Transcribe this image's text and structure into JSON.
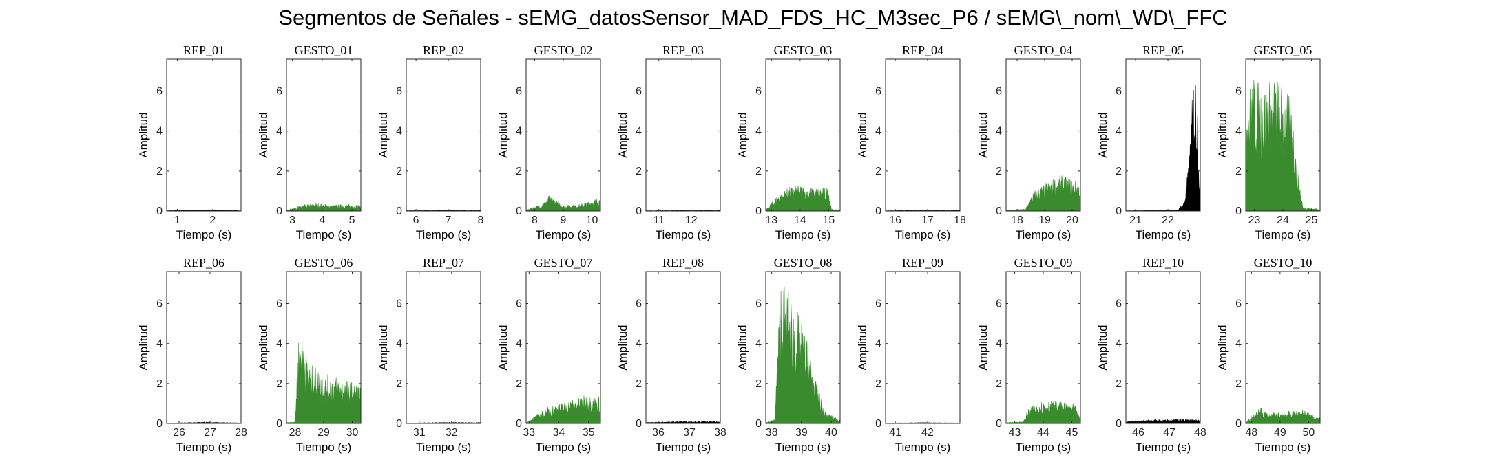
{
  "figure_title": "Segmentos de Señales - sEMG_datosSensor_MAD_FDS_HC_M3sec_P6 / sEMG\\_nom\\_WD\\_FFC",
  "colors": {
    "rep": "#000000",
    "gesto": "#3a8a2e"
  },
  "chart_data": [
    {
      "type": "area",
      "title": "REP_01",
      "kind": "rep",
      "xlabel": "Tiempo (s)",
      "ylabel": "Amplitud",
      "xlim": [
        0.7,
        2.8
      ],
      "ylim": [
        0,
        7.6
      ],
      "xticks": [
        1,
        2
      ],
      "yticks": [
        0,
        2,
        4,
        6
      ],
      "envelope": [
        [
          0.7,
          0.02
        ],
        [
          1.5,
          0.05
        ],
        [
          2.8,
          0.03
        ]
      ]
    },
    {
      "type": "area",
      "title": "GESTO_01",
      "kind": "gesto",
      "xlabel": "Tiempo (s)",
      "ylabel": "Amplitud",
      "xlim": [
        2.8,
        5.3
      ],
      "ylim": [
        0,
        7.6
      ],
      "xticks": [
        3,
        4,
        5
      ],
      "yticks": [
        0,
        2,
        4,
        6
      ],
      "envelope": [
        [
          2.8,
          0.04
        ],
        [
          3.3,
          0.3
        ],
        [
          3.8,
          0.4
        ],
        [
          4.3,
          0.3
        ],
        [
          4.8,
          0.35
        ],
        [
          5.3,
          0.3
        ]
      ]
    },
    {
      "type": "area",
      "title": "REP_02",
      "kind": "rep",
      "xlabel": "Tiempo (s)",
      "ylabel": "Amplitud",
      "xlim": [
        5.7,
        8.0
      ],
      "ylim": [
        0,
        7.6
      ],
      "xticks": [
        6,
        7,
        8
      ],
      "yticks": [
        0,
        2,
        4,
        6
      ],
      "envelope": [
        [
          5.7,
          0.02
        ],
        [
          6.8,
          0.04
        ],
        [
          8.0,
          0.03
        ]
      ]
    },
    {
      "type": "area",
      "title": "GESTO_02",
      "kind": "gesto",
      "xlabel": "Tiempo (s)",
      "ylabel": "Amplitud",
      "xlim": [
        7.7,
        10.3
      ],
      "ylim": [
        0,
        7.6
      ],
      "xticks": [
        8,
        9,
        10
      ],
      "yticks": [
        0,
        2,
        4,
        6
      ],
      "envelope": [
        [
          7.7,
          0.05
        ],
        [
          8.3,
          0.4
        ],
        [
          8.5,
          0.8
        ],
        [
          9.0,
          0.3
        ],
        [
          9.6,
          0.35
        ],
        [
          10.3,
          0.7
        ]
      ]
    },
    {
      "type": "area",
      "title": "REP_03",
      "kind": "rep",
      "xlabel": "Tiempo (s)",
      "ylabel": "Amplitud",
      "xlim": [
        10.6,
        12.9
      ],
      "ylim": [
        0,
        7.6
      ],
      "xticks": [
        11,
        12
      ],
      "yticks": [
        0,
        2,
        4,
        6
      ],
      "envelope": [
        [
          10.6,
          0.02
        ],
        [
          11.8,
          0.03
        ],
        [
          12.9,
          0.03
        ]
      ]
    },
    {
      "type": "area",
      "title": "GESTO_03",
      "kind": "gesto",
      "xlabel": "Tiempo (s)",
      "ylabel": "Amplitud",
      "xlim": [
        12.8,
        15.4
      ],
      "ylim": [
        0,
        7.6
      ],
      "xticks": [
        13,
        14,
        15
      ],
      "yticks": [
        0,
        2,
        4,
        6
      ],
      "envelope": [
        [
          12.8,
          0.05
        ],
        [
          13.2,
          0.8
        ],
        [
          13.6,
          1.2
        ],
        [
          14.0,
          1.3
        ],
        [
          14.5,
          1.2
        ],
        [
          15.0,
          1.2
        ],
        [
          15.1,
          0.1
        ],
        [
          15.4,
          0.05
        ]
      ]
    },
    {
      "type": "area",
      "title": "REP_04",
      "kind": "rep",
      "xlabel": "Tiempo (s)",
      "ylabel": "Amplitud",
      "xlim": [
        15.7,
        18.0
      ],
      "ylim": [
        0,
        7.6
      ],
      "xticks": [
        16,
        17,
        18
      ],
      "yticks": [
        0,
        2,
        4,
        6
      ],
      "envelope": [
        [
          15.7,
          0.02
        ],
        [
          16.9,
          0.04
        ],
        [
          18.0,
          0.03
        ]
      ]
    },
    {
      "type": "area",
      "title": "GESTO_04",
      "kind": "gesto",
      "xlabel": "Tiempo (s)",
      "ylabel": "Amplitud",
      "xlim": [
        17.6,
        20.3
      ],
      "ylim": [
        0,
        7.6
      ],
      "xticks": [
        18,
        19,
        20
      ],
      "yticks": [
        0,
        2,
        4,
        6
      ],
      "envelope": [
        [
          17.6,
          0.04
        ],
        [
          18.3,
          0.1
        ],
        [
          18.6,
          1.0
        ],
        [
          19.2,
          1.6
        ],
        [
          19.6,
          1.8
        ],
        [
          20.2,
          1.5
        ],
        [
          20.3,
          1.3
        ]
      ]
    },
    {
      "type": "area",
      "title": "REP_05",
      "kind": "rep",
      "xlabel": "Tiempo (s)",
      "ylabel": "Amplitud",
      "xlim": [
        20.7,
        23.0
      ],
      "ylim": [
        0,
        7.6
      ],
      "xticks": [
        21,
        22
      ],
      "yticks": [
        0,
        2,
        4,
        6
      ],
      "envelope": [
        [
          20.7,
          0.02
        ],
        [
          22.3,
          0.05
        ],
        [
          22.5,
          0.5
        ],
        [
          22.65,
          2.5
        ],
        [
          22.8,
          7.2
        ],
        [
          22.9,
          6.8
        ],
        [
          23.0,
          0.1
        ]
      ]
    },
    {
      "type": "area",
      "title": "GESTO_05",
      "kind": "gesto",
      "xlabel": "Tiempo (s)",
      "ylabel": "Amplitud",
      "xlim": [
        22.7,
        25.3
      ],
      "ylim": [
        0,
        7.6
      ],
      "xticks": [
        23,
        24,
        25
      ],
      "yticks": [
        0,
        2,
        4,
        6
      ],
      "envelope": [
        [
          22.7,
          6.0
        ],
        [
          23.0,
          6.8
        ],
        [
          23.3,
          6.3
        ],
        [
          23.7,
          6.8
        ],
        [
          24.0,
          6.5
        ],
        [
          24.3,
          5.5
        ],
        [
          24.5,
          2.5
        ],
        [
          24.7,
          0.2
        ],
        [
          25.3,
          0.1
        ]
      ]
    },
    {
      "type": "area",
      "title": "REP_06",
      "kind": "rep",
      "xlabel": "Tiempo (s)",
      "ylabel": "Amplitud",
      "xlim": [
        25.6,
        28.0
      ],
      "ylim": [
        0,
        7.6
      ],
      "xticks": [
        26,
        27,
        28
      ],
      "yticks": [
        0,
        2,
        4,
        6
      ],
      "envelope": [
        [
          25.6,
          0.02
        ],
        [
          26.8,
          0.07
        ],
        [
          28.0,
          0.03
        ]
      ]
    },
    {
      "type": "area",
      "title": "GESTO_06",
      "kind": "gesto",
      "xlabel": "Tiempo (s)",
      "ylabel": "Amplitud",
      "xlim": [
        27.7,
        30.3
      ],
      "ylim": [
        0,
        7.6
      ],
      "xticks": [
        28,
        29,
        30
      ],
      "yticks": [
        0,
        2,
        4,
        6
      ],
      "envelope": [
        [
          27.7,
          0.05
        ],
        [
          28.0,
          0.1
        ],
        [
          28.1,
          4.0
        ],
        [
          28.2,
          5.2
        ],
        [
          28.5,
          3.0
        ],
        [
          29.0,
          2.6
        ],
        [
          29.6,
          2.3
        ],
        [
          30.2,
          2.0
        ],
        [
          30.3,
          1.8
        ]
      ]
    },
    {
      "type": "area",
      "title": "REP_07",
      "kind": "rep",
      "xlabel": "Tiempo (s)",
      "ylabel": "Amplitud",
      "xlim": [
        30.6,
        32.9
      ],
      "ylim": [
        0,
        7.6
      ],
      "xticks": [
        31,
        32
      ],
      "yticks": [
        0,
        2,
        4,
        6
      ],
      "envelope": [
        [
          30.6,
          0.02
        ],
        [
          31.8,
          0.06
        ],
        [
          32.9,
          0.05
        ]
      ]
    },
    {
      "type": "area",
      "title": "GESTO_07",
      "kind": "gesto",
      "xlabel": "Tiempo (s)",
      "ylabel": "Amplitud",
      "xlim": [
        32.9,
        35.4
      ],
      "ylim": [
        0,
        7.6
      ],
      "xticks": [
        33,
        34,
        35
      ],
      "yticks": [
        0,
        2,
        4,
        6
      ],
      "envelope": [
        [
          32.9,
          0.05
        ],
        [
          33.2,
          0.4
        ],
        [
          33.7,
          0.9
        ],
        [
          34.2,
          1.1
        ],
        [
          34.8,
          1.4
        ],
        [
          35.4,
          1.4
        ]
      ]
    },
    {
      "type": "area",
      "title": "REP_08",
      "kind": "rep",
      "xlabel": "Tiempo (s)",
      "ylabel": "Amplitud",
      "xlim": [
        35.6,
        38.0
      ],
      "ylim": [
        0,
        7.6
      ],
      "xticks": [
        36,
        37,
        38
      ],
      "yticks": [
        0,
        2,
        4,
        6
      ],
      "envelope": [
        [
          35.6,
          0.05
        ],
        [
          36.8,
          0.12
        ],
        [
          38.0,
          0.1
        ]
      ]
    },
    {
      "type": "area",
      "title": "GESTO_08",
      "kind": "gesto",
      "xlabel": "Tiempo (s)",
      "ylabel": "Amplitud",
      "xlim": [
        37.8,
        40.3
      ],
      "ylim": [
        0,
        7.6
      ],
      "xticks": [
        38,
        39,
        40
      ],
      "yticks": [
        0,
        2,
        4,
        6
      ],
      "envelope": [
        [
          37.8,
          0.05
        ],
        [
          38.1,
          0.2
        ],
        [
          38.3,
          7.4
        ],
        [
          38.6,
          6.6
        ],
        [
          38.9,
          5.5
        ],
        [
          39.2,
          4.2
        ],
        [
          39.5,
          2.0
        ],
        [
          39.8,
          0.6
        ],
        [
          40.3,
          0.2
        ]
      ]
    },
    {
      "type": "area",
      "title": "REP_09",
      "kind": "rep",
      "xlabel": "Tiempo (s)",
      "ylabel": "Amplitud",
      "xlim": [
        40.7,
        43.0
      ],
      "ylim": [
        0,
        7.6
      ],
      "xticks": [
        41,
        42
      ],
      "yticks": [
        0,
        2,
        4,
        6
      ],
      "envelope": [
        [
          40.7,
          0.02
        ],
        [
          41.9,
          0.05
        ],
        [
          43.0,
          0.03
        ]
      ]
    },
    {
      "type": "area",
      "title": "GESTO_09",
      "kind": "gesto",
      "xlabel": "Tiempo (s)",
      "ylabel": "Amplitud",
      "xlim": [
        42.7,
        45.3
      ],
      "ylim": [
        0,
        7.6
      ],
      "xticks": [
        43,
        44,
        45
      ],
      "yticks": [
        0,
        2,
        4,
        6
      ],
      "envelope": [
        [
          42.7,
          0.05
        ],
        [
          43.3,
          0.1
        ],
        [
          43.5,
          0.8
        ],
        [
          44.0,
          1.2
        ],
        [
          44.5,
          1.1
        ],
        [
          45.1,
          1.0
        ],
        [
          45.3,
          0.2
        ]
      ]
    },
    {
      "type": "area",
      "title": "REP_10",
      "kind": "rep",
      "xlabel": "Tiempo (s)",
      "ylabel": "Amplitud",
      "xlim": [
        45.6,
        48.0
      ],
      "ylim": [
        0,
        7.6
      ],
      "xticks": [
        46,
        47,
        48
      ],
      "yticks": [
        0,
        2,
        4,
        6
      ],
      "envelope": [
        [
          45.6,
          0.1
        ],
        [
          46.8,
          0.25
        ],
        [
          48.0,
          0.2
        ]
      ]
    },
    {
      "type": "area",
      "title": "GESTO_10",
      "kind": "gesto",
      "xlabel": "Tiempo (s)",
      "ylabel": "Amplitud",
      "xlim": [
        47.8,
        50.4
      ],
      "ylim": [
        0,
        7.6
      ],
      "xticks": [
        48,
        49,
        50
      ],
      "yticks": [
        0,
        2,
        4,
        6
      ],
      "envelope": [
        [
          47.8,
          0.05
        ],
        [
          48.3,
          0.8
        ],
        [
          48.6,
          0.5
        ],
        [
          49.2,
          0.6
        ],
        [
          49.8,
          0.7
        ],
        [
          50.4,
          0.3
        ]
      ]
    }
  ]
}
